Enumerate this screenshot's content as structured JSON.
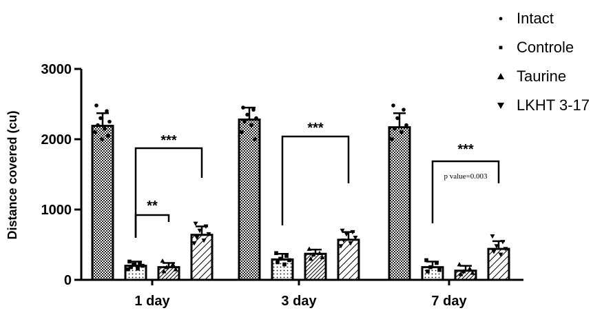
{
  "chart_data": {
    "type": "bar",
    "categories": [
      "1 day",
      "3 day",
      "7 day"
    ],
    "ylabel": "Distance covered (cu)",
    "xlabel": "",
    "ylim": [
      0,
      3000
    ],
    "yticks": [
      0,
      1000,
      2000,
      3000
    ],
    "legend_position": "top-right",
    "series": [
      {
        "name": "Intact",
        "marker": "circle",
        "pattern": "crosshatch",
        "values": [
          2190,
          2280,
          2170
        ],
        "errors": [
          180,
          170,
          200
        ],
        "points": [
          [
            2480,
            2400,
            2300,
            2250,
            2200,
            2150,
            2100,
            2050,
            2000
          ],
          [
            2450,
            2420,
            2350,
            2300,
            2250,
            2200,
            2100,
            2000
          ],
          [
            2480,
            2420,
            2300,
            2200,
            2150,
            2100,
            2000
          ]
        ]
      },
      {
        "name": "Controle",
        "marker": "square",
        "pattern": "dots",
        "values": [
          200,
          290,
          180
        ],
        "errors": [
          60,
          80,
          80
        ],
        "points": [
          [
            260,
            240,
            220,
            200,
            180,
            160,
            150
          ],
          [
            380,
            340,
            300,
            280,
            250,
            220
          ],
          [
            280,
            240,
            180,
            140,
            120
          ]
        ]
      },
      {
        "name": "Taurine",
        "marker": "triangle-up",
        "pattern": "diagonal-dense",
        "values": [
          180,
          370,
          130
        ],
        "errors": [
          60,
          60,
          70
        ],
        "points": [
          [
            270,
            220,
            180,
            150,
            120
          ],
          [
            440,
            380,
            360,
            320,
            300
          ],
          [
            220,
            160,
            120,
            100,
            80
          ]
        ]
      },
      {
        "name": "LKHT 3-17",
        "marker": "triangle-down",
        "pattern": "diagonal-wide",
        "values": [
          640,
          570,
          440
        ],
        "errors": [
          120,
          110,
          110
        ],
        "points": [
          [
            800,
            760,
            700,
            650,
            600,
            560,
            520
          ],
          [
            700,
            680,
            650,
            600,
            560,
            520,
            480
          ],
          [
            620,
            540,
            480,
            440,
            400,
            360
          ]
        ]
      }
    ],
    "annotations": [
      {
        "category": "1 day",
        "from_series": "Controle",
        "to_series": "LKHT 3-17",
        "text": "***"
      },
      {
        "category": "1 day",
        "from_series": "Controle",
        "to_series": "Taurine",
        "text": "**"
      },
      {
        "category": "3 day",
        "from_series": "Controle",
        "to_series": "LKHT 3-17",
        "text": "***"
      },
      {
        "category": "7 day",
        "from_series": "Controle",
        "to_series": "LKHT 3-17",
        "text": "***"
      },
      {
        "category": "7 day",
        "text": "p value=0.003"
      }
    ]
  }
}
